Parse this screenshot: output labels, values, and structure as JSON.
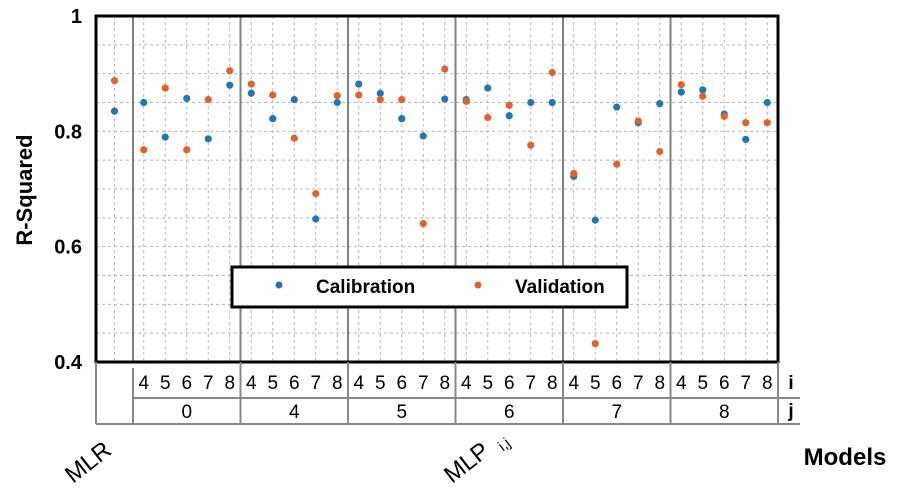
{
  "colors": {
    "calibration": "#1f77b4",
    "validation": "#e0622a"
  },
  "chart_data": {
    "type": "scatter",
    "ylabel": "R-Squared",
    "xlabel": "Models",
    "ylim": [
      0.4,
      1.0
    ],
    "yticks": [
      "0.4",
      "0.6",
      "0.8",
      "1"
    ],
    "grid": true,
    "legend_position": "lower-middle",
    "series": [
      {
        "name": "Calibration",
        "values": [
          0.835,
          0.85,
          0.79,
          0.857,
          0.787,
          0.88,
          0.866,
          0.822,
          0.855,
          0.648,
          0.85,
          0.882,
          0.866,
          0.822,
          0.792,
          0.856,
          0.855,
          0.875,
          0.827,
          0.85,
          0.85,
          0.722,
          0.646,
          0.842,
          0.815,
          0.848,
          0.868,
          0.872,
          0.83,
          0.786,
          0.85
        ]
      },
      {
        "name": "Validation",
        "values": [
          0.888,
          0.768,
          0.875,
          0.768,
          0.855,
          0.905,
          0.882,
          0.863,
          0.788,
          0.692,
          0.862,
          0.863,
          0.855,
          0.855,
          0.64,
          0.908,
          0.852,
          0.824,
          0.845,
          0.776,
          0.902,
          0.727,
          0.432,
          0.743,
          0.818,
          0.765,
          0.881,
          0.861,
          0.826,
          0.815,
          0.815
        ]
      }
    ],
    "categories": [
      "MLR",
      "MLP 4,0",
      "MLP 5,0",
      "MLP 6,0",
      "MLP 7,0",
      "MLP 8,0",
      "MLP 4,4",
      "MLP 5,4",
      "MLP 6,4",
      "MLP 7,4",
      "MLP 8,4",
      "MLP 4,5",
      "MLP 5,5",
      "MLP 6,5",
      "MLP 7,5",
      "MLP 8,5",
      "MLP 4,6",
      "MLP 5,6",
      "MLP 6,6",
      "MLP 7,6",
      "MLP 8,6",
      "MLP 4,7",
      "MLP 5,7",
      "MLP 6,7",
      "MLP 7,7",
      "MLP 8,7",
      "MLP 4,8",
      "MLP 5,8",
      "MLP 6,8",
      "MLP 7,8",
      "MLP 8,8"
    ],
    "i_values": [
      "4",
      "5",
      "6",
      "7",
      "8"
    ],
    "j_values": [
      "0",
      "4",
      "5",
      "6",
      "7",
      "8"
    ],
    "row_labels": {
      "i": "i",
      "j": "j"
    },
    "group_labels": {
      "mlr": "MLR",
      "mlp": "MLP",
      "mlp_sub": "i,j"
    }
  }
}
